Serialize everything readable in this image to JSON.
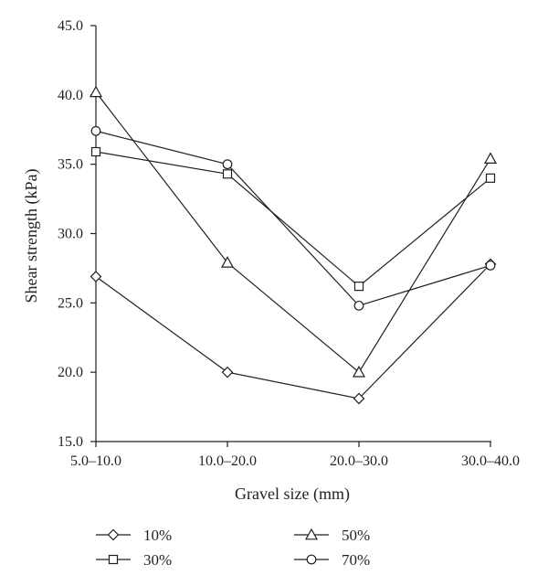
{
  "chart_data": {
    "type": "line",
    "categories": [
      "5.0–10.0",
      "10.0–20.0",
      "20.0–30.0",
      "30.0–40.0"
    ],
    "series": [
      {
        "name": "10%",
        "marker": "diamond",
        "values": [
          26.9,
          20.0,
          18.1,
          27.8
        ]
      },
      {
        "name": "30%",
        "marker": "square",
        "values": [
          35.9,
          34.3,
          26.2,
          34.0
        ]
      },
      {
        "name": "50%",
        "marker": "triangle",
        "values": [
          40.2,
          27.9,
          20.0,
          35.4
        ]
      },
      {
        "name": "70%",
        "marker": "circle",
        "values": [
          37.4,
          35.0,
          24.8,
          27.7
        ]
      }
    ],
    "title": "",
    "xlabel": "Gravel size (mm)",
    "ylabel": "Shear strength (kPa)",
    "ylim": [
      15.0,
      45.0
    ],
    "yticks": [
      "15.0",
      "20.0",
      "25.0",
      "30.0",
      "35.0",
      "40.0",
      "45.0"
    ],
    "grid": false,
    "legend_position": "bottom",
    "line_color": "#231f20"
  }
}
